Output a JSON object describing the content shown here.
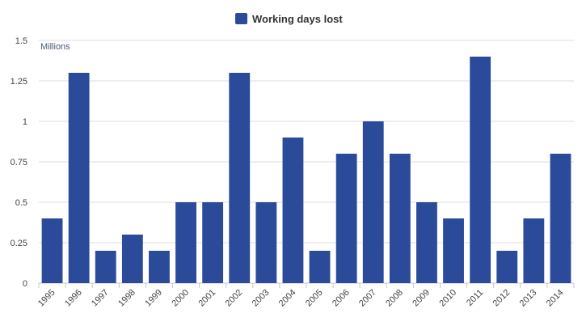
{
  "chart_data": {
    "type": "bar",
    "categories": [
      "1995",
      "1996",
      "1997",
      "1998",
      "1999",
      "2000",
      "2001",
      "2002",
      "2003",
      "2004",
      "2005",
      "2006",
      "2007",
      "2008",
      "2009",
      "2010",
      "2011",
      "2012",
      "2013",
      "2014"
    ],
    "series": [
      {
        "name": "Working days lost",
        "values": [
          0.4,
          1.3,
          0.2,
          0.3,
          0.2,
          0.5,
          0.5,
          1.3,
          0.5,
          0.9,
          0.2,
          0.8,
          1.0,
          0.8,
          0.5,
          0.4,
          1.4,
          0.2,
          0.4,
          0.8
        ]
      }
    ],
    "y_unit_label": "Millions",
    "ylim": [
      0,
      1.5
    ],
    "yticks": [
      "0",
      "0.25",
      "0.5",
      "0.75",
      "1",
      "1.25",
      "1.5"
    ],
    "ytick_values": [
      0,
      0.25,
      0.5,
      0.75,
      1,
      1.25,
      1.5
    ],
    "legend_position": "top-center",
    "grid": true,
    "bar_color": "#2b4a9a"
  }
}
